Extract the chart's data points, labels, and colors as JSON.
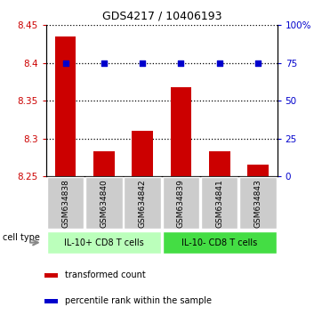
{
  "title": "GDS4217 / 10406193",
  "samples": [
    "GSM634838",
    "GSM634840",
    "GSM634842",
    "GSM634839",
    "GSM634841",
    "GSM634843"
  ],
  "transformed_counts": [
    8.435,
    8.283,
    8.31,
    8.368,
    8.283,
    8.265
  ],
  "percentile_ranks": [
    75,
    75,
    75,
    75,
    75,
    75
  ],
  "ylim_left": [
    8.25,
    8.45
  ],
  "ylim_right": [
    0,
    100
  ],
  "yticks_left": [
    8.25,
    8.3,
    8.35,
    8.4,
    8.45
  ],
  "yticks_right": [
    0,
    25,
    50,
    75,
    100
  ],
  "ytick_labels_left": [
    "8.25",
    "8.3",
    "8.35",
    "8.4",
    "8.45"
  ],
  "ytick_labels_right": [
    "0",
    "25",
    "50",
    "75",
    "100%"
  ],
  "groups": [
    {
      "label": "IL-10+ CD8 T cells",
      "indices": [
        0,
        1,
        2
      ],
      "color": "#bbffbb"
    },
    {
      "label": "IL-10- CD8 T cells",
      "indices": [
        3,
        4,
        5
      ],
      "color": "#44dd44"
    }
  ],
  "bar_color": "#cc0000",
  "dot_color": "#0000cc",
  "bar_baseline": 8.25,
  "cell_type_label": "cell type",
  "legend_items": [
    {
      "color": "#cc0000",
      "label": "transformed count"
    },
    {
      "color": "#0000cc",
      "label": "percentile rank within the sample"
    }
  ],
  "tick_color_left": "#cc0000",
  "tick_color_right": "#0000cc",
  "xticklabel_bg": "#cccccc"
}
